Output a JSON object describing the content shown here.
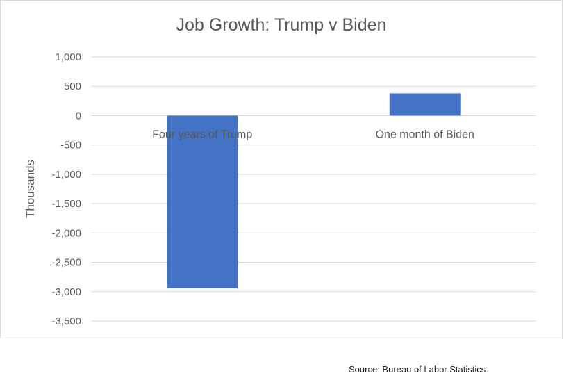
{
  "chart_data": {
    "type": "bar",
    "title": "Job Growth: Trump v Biden",
    "xlabel": "",
    "ylabel": "Thousands",
    "categories": [
      "Four years of Trump",
      "One month of Biden"
    ],
    "values": [
      -2940,
      379
    ],
    "ylim": [
      -3500,
      1000
    ],
    "yticks": [
      1000,
      500,
      0,
      -500,
      -1000,
      -1500,
      -2000,
      -2500,
      -3000,
      -3500
    ],
    "ytick_labels": [
      "1,000",
      "500",
      "0",
      "-500",
      "-1,000",
      "-1,500",
      "-2,000",
      "-2,500",
      "-3,000",
      "-3,500"
    ],
    "grid": true,
    "legend": false
  },
  "colors": {
    "bar": "#4472c4",
    "grid": "#d9d9d9",
    "text": "#595959"
  },
  "footer": {
    "source": "Source: Bureau of Labor Statistics."
  }
}
